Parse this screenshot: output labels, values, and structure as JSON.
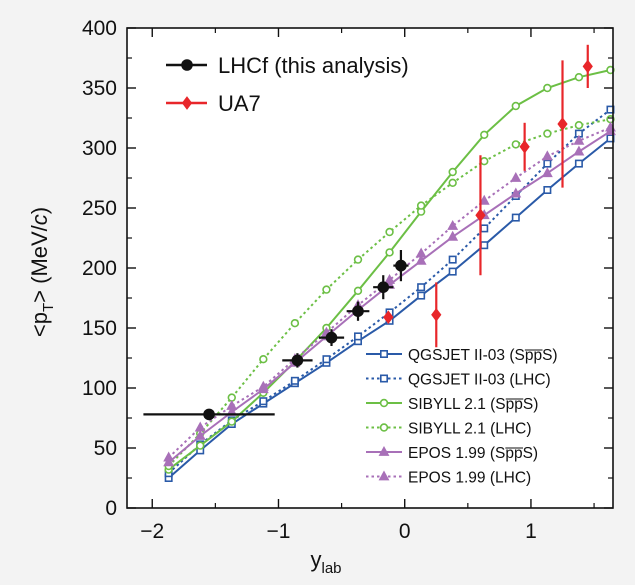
{
  "chart_data": {
    "type": "line",
    "xlabel_main": "y",
    "xlabel_sub": "lab",
    "ylabel_pre": "<p",
    "ylabel_sub": "T",
    "ylabel_post": "> (MeV/",
    "ylabel_c": "c",
    "ylabel_close": ")",
    "xlim": [
      -2.2,
      1.65
    ],
    "ylim": [
      0,
      400
    ],
    "x_ticks": [
      -2,
      -1,
      0,
      1
    ],
    "x_tick_labels": [
      "−2",
      "−1",
      "0",
      "1"
    ],
    "y_ticks": [
      0,
      50,
      100,
      150,
      200,
      250,
      300,
      350,
      400
    ],
    "y_tick_labels": [
      "0",
      "50",
      "100",
      "150",
      "200",
      "250",
      "300",
      "350",
      "400"
    ],
    "data_legend": [
      {
        "label": "LHCf (this analysis)",
        "color": "#111111",
        "marker": "circle"
      },
      {
        "label": "UA7",
        "color": "#e8262a",
        "marker": "diamond"
      }
    ],
    "model_legend": [
      {
        "label": "QGSJET II-03 (Sp̅p̅S)",
        "color": "#2a5aa8",
        "marker": "square",
        "dash": "solid"
      },
      {
        "label": "QGSJET II-03 (LHC)",
        "color": "#2a5aa8",
        "marker": "square",
        "dash": "dotted"
      },
      {
        "label": "SIBYLL 2.1 (Sp̅p̅S)",
        "color": "#6cbf45",
        "marker": "circle",
        "dash": "solid"
      },
      {
        "label": "SIBYLL 2.1 (LHC)",
        "color": "#6cbf45",
        "marker": "circle",
        "dash": "dotted"
      },
      {
        "label": "EPOS 1.99 (Sp̅p̅S)",
        "color": "#a870b8",
        "marker": "triangle",
        "dash": "solid"
      },
      {
        "label": "EPOS 1.99 (LHC)",
        "color": "#a870b8",
        "marker": "triangle",
        "dash": "dotted"
      }
    ],
    "series": [
      {
        "name": "QGSJET II-03 (SppS)",
        "color": "#2a5aa8",
        "marker": "square",
        "dash": "solid",
        "x": [
          -1.87,
          -1.62,
          -1.37,
          -1.12,
          -0.87,
          -0.62,
          -0.37,
          -0.12,
          0.13,
          0.38,
          0.63,
          0.88,
          1.13,
          1.38,
          1.63
        ],
        "y": [
          25,
          48,
          70,
          87,
          104,
          121,
          139,
          156,
          177,
          197,
          219,
          242,
          265,
          287,
          308
        ]
      },
      {
        "name": "QGSJET II-03 (LHC)",
        "color": "#2a5aa8",
        "marker": "square",
        "dash": "dotted",
        "x": [
          -1.87,
          -1.62,
          -1.37,
          -1.12,
          -0.87,
          -0.62,
          -0.37,
          -0.12,
          0.13,
          0.38,
          0.63,
          0.88,
          1.13,
          1.38,
          1.63
        ],
        "y": [
          29,
          53,
          73,
          89,
          106,
          124,
          143,
          163,
          184,
          207,
          233,
          260,
          287,
          312,
          332
        ]
      },
      {
        "name": "SIBYLL 2.1 (SppS)",
        "color": "#6cbf45",
        "marker": "circle",
        "dash": "solid",
        "x": [
          -1.87,
          -1.62,
          -1.37,
          -1.12,
          -0.87,
          -0.62,
          -0.37,
          -0.12,
          0.13,
          0.38,
          0.63,
          0.88,
          1.13,
          1.38,
          1.63
        ],
        "y": [
          32,
          52,
          72,
          96,
          122,
          150,
          181,
          213,
          247,
          280,
          311,
          335,
          350,
          359,
          365
        ]
      },
      {
        "name": "SIBYLL 2.1 (LHC)",
        "color": "#6cbf45",
        "marker": "circle",
        "dash": "dotted",
        "x": [
          -1.87,
          -1.62,
          -1.37,
          -1.12,
          -0.87,
          -0.62,
          -0.37,
          -0.12,
          0.13,
          0.38,
          0.63,
          0.88,
          1.13,
          1.38,
          1.63
        ],
        "y": [
          35,
          62,
          92,
          124,
          154,
          182,
          207,
          230,
          252,
          271,
          289,
          303,
          312,
          319,
          324
        ]
      },
      {
        "name": "EPOS 1.99 (SppS)",
        "color": "#a870b8",
        "marker": "triangle",
        "dash": "solid",
        "x": [
          -1.87,
          -1.62,
          -1.37,
          -1.12,
          -0.87,
          -0.62,
          -0.37,
          -0.12,
          0.13,
          0.38,
          0.63,
          0.88,
          1.13,
          1.38,
          1.63
        ],
        "y": [
          38,
          60,
          80,
          99,
          121,
          143,
          165,
          186,
          206,
          226,
          244,
          262,
          279,
          297,
          314
        ]
      },
      {
        "name": "EPOS 1.99 (LHC)",
        "color": "#a870b8",
        "marker": "triangle",
        "dash": "dotted",
        "x": [
          -1.87,
          -1.62,
          -1.37,
          -1.12,
          -0.87,
          -0.62,
          -0.37,
          -0.12,
          0.13,
          0.38,
          0.63,
          0.88,
          1.13,
          1.38,
          1.63
        ],
        "y": [
          42,
          67,
          85,
          101,
          124,
          146,
          169,
          190,
          212,
          235,
          256,
          275,
          293,
          306,
          317
        ]
      }
    ],
    "lhcf": [
      {
        "x": -1.55,
        "y": 78,
        "xerr": 0.52,
        "yerr": 0
      },
      {
        "x": -0.85,
        "y": 123,
        "xerr": 0.12,
        "yerr": 6
      },
      {
        "x": -0.58,
        "y": 142,
        "xerr": 0.1,
        "yerr": 7
      },
      {
        "x": -0.37,
        "y": 164,
        "xerr": 0.09,
        "yerr": 8
      },
      {
        "x": -0.17,
        "y": 184,
        "xerr": 0.08,
        "yerr": 10
      },
      {
        "x": -0.03,
        "y": 202,
        "xerr": 0.06,
        "yerr": 13
      }
    ],
    "ua7": [
      {
        "x": -0.13,
        "y": 159,
        "yerr": 4
      },
      {
        "x": 0.25,
        "y": 161,
        "yerr": 27
      },
      {
        "x": 0.6,
        "y": 244,
        "yerr": 50
      },
      {
        "x": 0.95,
        "y": 301,
        "yerr": 20
      },
      {
        "x": 1.25,
        "y": 320,
        "yerr": 53
      },
      {
        "x": 1.45,
        "y": 368,
        "yerr": 18
      }
    ]
  }
}
